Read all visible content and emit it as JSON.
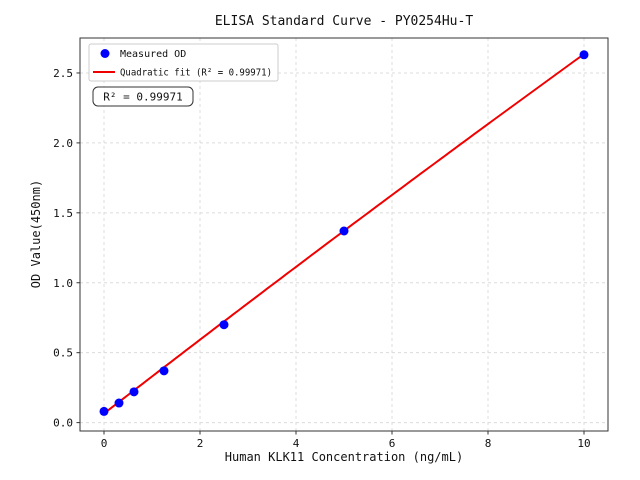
{
  "figure": {
    "background": "#ffffff"
  },
  "chart_data": {
    "type": "scatter",
    "title": "ELISA Standard Curve - PY0254Hu-T",
    "xlabel": "Human KLK11 Concentration (ng/mL)",
    "ylabel": "OD Value(450nm)",
    "xlim": [
      -0.5,
      10.5
    ],
    "ylim": [
      -0.06,
      2.75
    ],
    "xticks": [
      0,
      2,
      4,
      6,
      8,
      10
    ],
    "yticks": [
      0.0,
      0.5,
      1.0,
      1.5,
      2.0,
      2.5
    ],
    "grid": true,
    "grid_color": "#dcdcdc",
    "legend_position": "upper left",
    "series": [
      {
        "name": "Measured OD",
        "kind": "scatter",
        "marker": "circle",
        "color": "#0000ff",
        "x": [
          0,
          0.3125,
          0.625,
          1.25,
          2.5,
          5,
          10
        ],
        "y": [
          0.08,
          0.14,
          0.22,
          0.37,
          0.7,
          1.37,
          2.63
        ]
      },
      {
        "name": "Quadratic fit (R² = 0.99971)",
        "kind": "line",
        "color": "#f00000",
        "x_range": [
          0,
          10
        ],
        "fit_coefficients": {
          "intercept": 0.065,
          "linear": 0.2655,
          "quadratic": -0.00085
        }
      }
    ],
    "annotation": "R² = 0.99971",
    "r_squared": 0.99971
  }
}
